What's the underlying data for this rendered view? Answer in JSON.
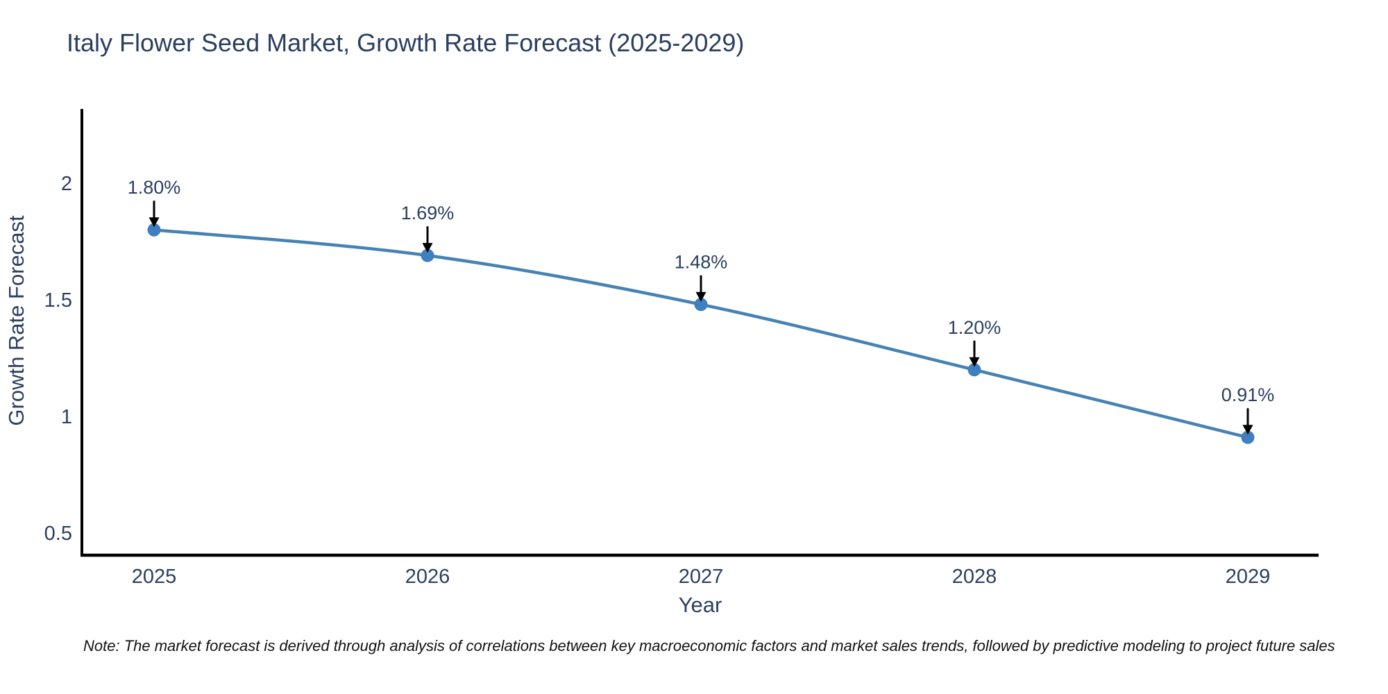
{
  "title": "Italy Flower Seed Market, Growth Rate Forecast (2025-2029)",
  "note": "Note: The market forecast is derived through analysis of correlations between key macroeconomic factors and market sales trends, followed by predictive modeling to project future sales",
  "chart_data": {
    "type": "line",
    "title": "Italy Flower Seed Market, Growth Rate Forecast (2025-2029)",
    "xlabel": "Year",
    "ylabel": "Growth Rate Forecast",
    "x": [
      2025,
      2026,
      2027,
      2028,
      2029
    ],
    "values": [
      1.8,
      1.69,
      1.48,
      1.2,
      0.91
    ],
    "point_labels": [
      "1.80%",
      "1.69%",
      "1.48%",
      "1.20%",
      "0.91%"
    ],
    "xticks": [
      "2025",
      "2026",
      "2027",
      "2028",
      "2029"
    ],
    "yticks": [
      0.5,
      1,
      1.5,
      2
    ],
    "xlim": [
      2024.74,
      2029.26
    ],
    "ylim": [
      0.4,
      2.32
    ],
    "grid": false,
    "legend": null,
    "annotation_style": "value label with downward black arrow onto each marker",
    "colors": {
      "line": "#4682b4",
      "marker": "#3f7fbf",
      "axis": "#000000",
      "text": "#2a3f5f",
      "arrow": "#000000",
      "title": "#2a3f5f",
      "note": "#111111",
      "background": "#ffffff"
    }
  }
}
